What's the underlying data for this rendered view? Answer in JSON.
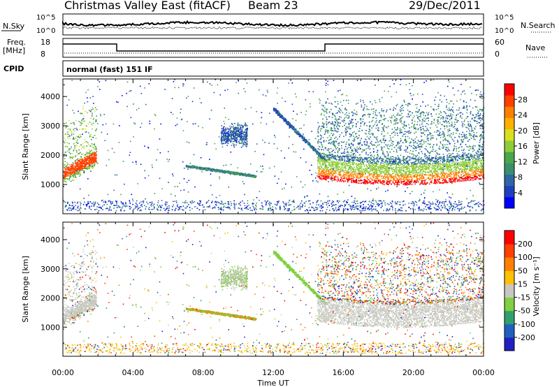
{
  "header": {
    "title": "Christmas Valley East (fitACF)",
    "beam": "Beam 23",
    "date": "29/Dec/2011"
  },
  "status_panels": {
    "nsky_label": "N.Sky",
    "nsearch_label": "N.Search",
    "nsky_ticks": [
      "10^5",
      "10^0"
    ],
    "nsearch_ticks": [
      "10^5",
      "10^0"
    ],
    "freq_label": "Freq.",
    "freq_unit": "[MHz]",
    "freq_ticks": [
      "18",
      "8"
    ],
    "nave_label": "Nave",
    "nave_ticks": [
      "60",
      "0"
    ],
    "cpid_label": "CPID",
    "cpid_text": "normal (fast) 151 IF"
  },
  "chart_data": [
    {
      "type": "heatmap",
      "name": "power-panel",
      "xlabel": "",
      "ylabel": "Slant Range [km]",
      "ylim": [
        0,
        4600
      ],
      "y_ticks": [
        1000,
        2000,
        3000,
        4000
      ],
      "colorbar": {
        "label": "Power [dB]",
        "tick_labels": [
          "4",
          "8",
          "12",
          "16",
          "20",
          "24",
          "28"
        ],
        "colors": [
          "#0000ff",
          "#1f3fbf",
          "#2e66a3",
          "#3a8f6e",
          "#48a84a",
          "#8fcc3a",
          "#d8e020",
          "#ffb000",
          "#ff8000",
          "#ff4000",
          "#ff0000"
        ]
      },
      "features": [
        {
          "t_start": 0.0,
          "t_end": 1.8,
          "range_km": 1400,
          "power_db": 26
        },
        {
          "t_start": 7.0,
          "t_end": 11.0,
          "range_km": 1550,
          "power_db": 10
        },
        {
          "t_start": 14.5,
          "t_end": 24.0,
          "range_km": 1150,
          "power_db": 28
        }
      ]
    },
    {
      "type": "heatmap",
      "name": "velocity-panel",
      "xlabel": "Time UT",
      "ylabel": "Slant Range [km]",
      "ylim": [
        0,
        4600
      ],
      "y_ticks": [
        1000,
        2000,
        3000,
        4000
      ],
      "x_tick_labels": [
        "00:00",
        "04:00",
        "08:00",
        "12:00",
        "16:00",
        "20:00",
        "00:00"
      ],
      "colorbar": {
        "label": "Velocity [m s⁻¹]",
        "tick_labels": [
          "200",
          "100",
          "50",
          "15",
          "-15",
          "-50",
          "-100",
          "-200"
        ],
        "colors": [
          "#2020c0",
          "#2060c0",
          "#30a070",
          "#80d040",
          "#c8c8c0",
          "#ffc000",
          "#ff8000",
          "#ff4000",
          "#ff0000"
        ]
      },
      "features": [
        {
          "t_start": 0.0,
          "t_end": 1.8,
          "range_km": 1400,
          "velocity": 0
        },
        {
          "t_start": 7.0,
          "t_end": 11.0,
          "range_km": 1500,
          "velocity": -40
        },
        {
          "t_start": 14.5,
          "t_end": 24.0,
          "range_km": 1150,
          "velocity": 0
        }
      ]
    }
  ]
}
